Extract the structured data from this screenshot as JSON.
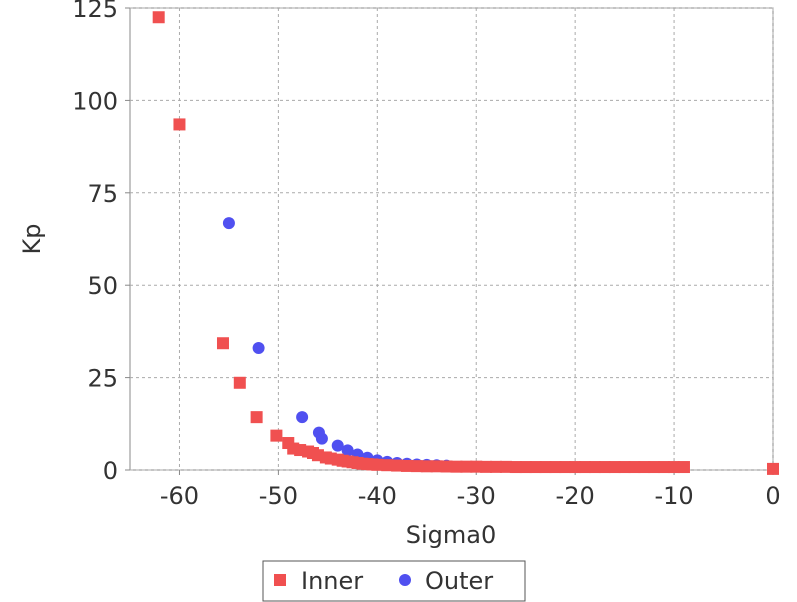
{
  "chart_data": {
    "type": "scatter",
    "xlabel": "Sigma0",
    "ylabel": "Kp",
    "xlim": [
      -65,
      0
    ],
    "ylim": [
      0,
      125
    ],
    "x_ticks": [
      -60,
      -50,
      -40,
      -30,
      -20,
      -10,
      0
    ],
    "y_ticks": [
      0,
      25,
      50,
      75,
      100,
      125
    ],
    "grid": true,
    "legend_position": "bottom",
    "series": [
      {
        "name": "Inner",
        "marker": "square",
        "color": "#f05050",
        "x": [
          -62.1,
          -60.0,
          -55.6,
          -53.9,
          -52.2,
          -50.2,
          -49.0,
          -48.5,
          -47.8,
          -47.0,
          -46.5,
          -46.0,
          -45.2,
          -44.7,
          -44.0,
          -43.5,
          -43.0,
          -42.5,
          -42.0,
          -41.5,
          -41.0,
          -40.5,
          -40.0,
          -39.0,
          -38.0,
          -37.0,
          -36.0,
          -35.0,
          -34.0,
          -33.0,
          -32.0,
          -31.0,
          -30.0,
          -29.0,
          -28.0,
          -27.0,
          -26.0,
          -25.0,
          -24.0,
          -23.0,
          -22.0,
          -21.0,
          -20.0,
          -19.0,
          -18.0,
          -17.0,
          -16.0,
          -15.0,
          -14.0,
          -13.0,
          -12.0,
          -11.0,
          -10.0,
          -9.0,
          0.0
        ],
        "y": [
          122.5,
          93.5,
          34.3,
          23.6,
          14.3,
          9.3,
          7.3,
          5.8,
          5.4,
          5.0,
          4.6,
          4.0,
          3.4,
          3.1,
          2.8,
          2.5,
          2.3,
          2.1,
          1.9,
          1.7,
          1.6,
          1.5,
          1.4,
          1.3,
          1.2,
          1.1,
          1.05,
          1.0,
          1.0,
          0.95,
          0.9,
          0.9,
          0.9,
          0.85,
          0.85,
          0.85,
          0.8,
          0.8,
          0.8,
          0.8,
          0.8,
          0.8,
          0.8,
          0.8,
          0.8,
          0.8,
          0.8,
          0.8,
          0.8,
          0.8,
          0.8,
          0.8,
          0.8,
          0.8,
          0.3
        ]
      },
      {
        "name": "Outer",
        "marker": "circle",
        "color": "#5050f0",
        "x": [
          -55.0,
          -52.0,
          -47.6,
          -45.9,
          -45.6,
          -44.0,
          -43.0,
          -42.0,
          -41.0,
          -40.0,
          -39.0,
          -38.0,
          -37.0,
          -36.0,
          -35.0,
          -34.0,
          -33.0
        ],
        "y": [
          66.8,
          33.0,
          14.3,
          10.1,
          8.5,
          6.6,
          5.3,
          4.2,
          3.3,
          2.6,
          2.2,
          1.9,
          1.7,
          1.5,
          1.4,
          1.3,
          1.2
        ]
      }
    ]
  }
}
